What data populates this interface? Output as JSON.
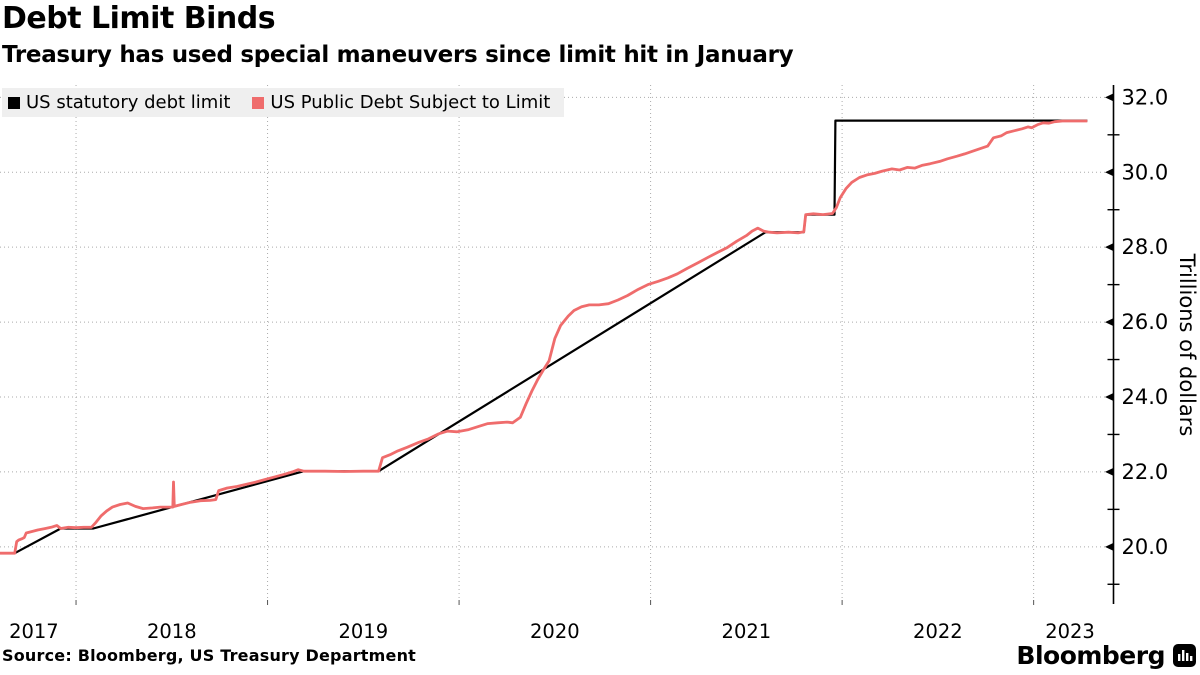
{
  "header": {
    "title": "Debt Limit Binds",
    "subtitle": "Treasury has used special maneuvers since limit hit in January"
  },
  "legend": {
    "position": "top-left",
    "items": [
      {
        "label": "US statutory debt limit",
        "color": "#000000"
      },
      {
        "label": "US Public Debt Subject to Limit",
        "color": "#ef6c6c"
      }
    ]
  },
  "footer": {
    "source": "Source: Bloomberg, US Treasury Department",
    "brand": "Bloomberg",
    "brand_icon": "bloomberg-terminal-icon"
  },
  "colors": {
    "background": "#ffffff",
    "legend_background": "#efefef",
    "gridline": "#ababab",
    "axis": "#000000",
    "limit_line": "#000000",
    "debt_line": "#ef6c6c"
  },
  "chart_data": {
    "type": "line",
    "title": "Debt Limit Binds",
    "xlabel": "",
    "ylabel": "Trillions of dollars",
    "grid": "dotted",
    "legend_position": "top-left",
    "x_domain": [
      2017.603,
      2023.417
    ],
    "y_domain": [
      18.5,
      32.33
    ],
    "x_gridline_years": [
      2018,
      2019,
      2020,
      2021,
      2022,
      2023
    ],
    "x_tick_labels": [
      "2017",
      "2018",
      "2019",
      "2020",
      "2021",
      "2022",
      "2023"
    ],
    "x_tick_positions": [
      2017.78,
      2018.5,
      2019.5,
      2020.5,
      2021.5,
      2022.5,
      2023.19
    ],
    "y_major_ticks": [
      20,
      22,
      24,
      26,
      28,
      30,
      32
    ],
    "y_major_tick_labels": [
      "20.0",
      "22.0",
      "24.0",
      "26.0",
      "28.0",
      "30.0",
      "32.0"
    ],
    "y_minor_ticks": [
      19,
      21,
      23,
      25,
      27,
      29,
      31
    ],
    "series": [
      {
        "name": "US statutory debt limit",
        "color": "#000000",
        "width": 2.2,
        "points": [
          [
            2017.603,
            19.83
          ],
          [
            2017.68,
            19.83
          ],
          [
            2017.92,
            20.49
          ],
          [
            2018.09,
            20.49
          ],
          [
            2019.19,
            22.02
          ],
          [
            2019.58,
            22.02
          ],
          [
            2021.6,
            28.4
          ],
          [
            2021.8,
            28.4
          ],
          [
            2021.81,
            28.87
          ],
          [
            2021.96,
            28.87
          ],
          [
            2021.965,
            31.38
          ],
          [
            2023.28,
            31.38
          ]
        ]
      },
      {
        "name": "US Public Debt Subject to Limit",
        "color": "#ef6c6c",
        "width": 2.8,
        "points": [
          [
            2017.603,
            19.83
          ],
          [
            2017.68,
            19.83
          ],
          [
            2017.69,
            20.14
          ],
          [
            2017.7,
            20.18
          ],
          [
            2017.72,
            20.22
          ],
          [
            2017.73,
            20.25
          ],
          [
            2017.74,
            20.37
          ],
          [
            2017.77,
            20.41
          ],
          [
            2017.8,
            20.45
          ],
          [
            2017.84,
            20.49
          ],
          [
            2017.87,
            20.52
          ],
          [
            2017.9,
            20.57
          ],
          [
            2017.92,
            20.49
          ],
          [
            2017.96,
            20.52
          ],
          [
            2018.0,
            20.51
          ],
          [
            2018.04,
            20.52
          ],
          [
            2018.08,
            20.52
          ],
          [
            2018.1,
            20.63
          ],
          [
            2018.13,
            20.82
          ],
          [
            2018.16,
            20.96
          ],
          [
            2018.19,
            21.06
          ],
          [
            2018.23,
            21.13
          ],
          [
            2018.27,
            21.17
          ],
          [
            2018.31,
            21.08
          ],
          [
            2018.35,
            21.02
          ],
          [
            2018.4,
            21.04
          ],
          [
            2018.44,
            21.06
          ],
          [
            2018.49,
            21.06
          ],
          [
            2018.505,
            21.06
          ],
          [
            2018.509,
            21.73
          ],
          [
            2018.513,
            21.08
          ],
          [
            2018.55,
            21.13
          ],
          [
            2018.6,
            21.19
          ],
          [
            2018.65,
            21.23
          ],
          [
            2018.7,
            21.24
          ],
          [
            2018.73,
            21.26
          ],
          [
            2018.745,
            21.5
          ],
          [
            2018.79,
            21.57
          ],
          [
            2018.84,
            21.61
          ],
          [
            2018.89,
            21.67
          ],
          [
            2018.94,
            21.73
          ],
          [
            2018.99,
            21.8
          ],
          [
            2019.04,
            21.87
          ],
          [
            2019.09,
            21.94
          ],
          [
            2019.13,
            22.0
          ],
          [
            2019.16,
            22.06
          ],
          [
            2019.19,
            22.02
          ],
          [
            2019.3,
            22.02
          ],
          [
            2019.4,
            22.01
          ],
          [
            2019.5,
            22.02
          ],
          [
            2019.58,
            22.02
          ],
          [
            2019.6,
            22.38
          ],
          [
            2019.64,
            22.46
          ],
          [
            2019.68,
            22.56
          ],
          [
            2019.73,
            22.66
          ],
          [
            2019.79,
            22.79
          ],
          [
            2019.84,
            22.88
          ],
          [
            2019.89,
            23.01
          ],
          [
            2019.94,
            23.09
          ],
          [
            2019.99,
            23.07
          ],
          [
            2020.05,
            23.13
          ],
          [
            2020.1,
            23.21
          ],
          [
            2020.15,
            23.29
          ],
          [
            2020.2,
            23.31
          ],
          [
            2020.25,
            23.33
          ],
          [
            2020.28,
            23.31
          ],
          [
            2020.32,
            23.46
          ],
          [
            2020.35,
            23.82
          ],
          [
            2020.38,
            24.16
          ],
          [
            2020.41,
            24.46
          ],
          [
            2020.44,
            24.72
          ],
          [
            2020.47,
            24.97
          ],
          [
            2020.5,
            25.56
          ],
          [
            2020.53,
            25.91
          ],
          [
            2020.57,
            26.16
          ],
          [
            2020.6,
            26.31
          ],
          [
            2020.64,
            26.41
          ],
          [
            2020.68,
            26.46
          ],
          [
            2020.73,
            26.46
          ],
          [
            2020.78,
            26.49
          ],
          [
            2020.83,
            26.59
          ],
          [
            2020.88,
            26.71
          ],
          [
            2020.93,
            26.86
          ],
          [
            2020.99,
            27.01
          ],
          [
            2021.04,
            27.09
          ],
          [
            2021.09,
            27.18
          ],
          [
            2021.14,
            27.29
          ],
          [
            2021.19,
            27.43
          ],
          [
            2021.25,
            27.59
          ],
          [
            2021.3,
            27.73
          ],
          [
            2021.35,
            27.86
          ],
          [
            2021.4,
            27.99
          ],
          [
            2021.45,
            28.16
          ],
          [
            2021.5,
            28.31
          ],
          [
            2021.53,
            28.43
          ],
          [
            2021.56,
            28.51
          ],
          [
            2021.59,
            28.43
          ],
          [
            2021.62,
            28.4
          ],
          [
            2021.66,
            28.38
          ],
          [
            2021.72,
            28.4
          ],
          [
            2021.77,
            28.38
          ],
          [
            2021.8,
            28.41
          ],
          [
            2021.81,
            28.87
          ],
          [
            2021.85,
            28.89
          ],
          [
            2021.9,
            28.87
          ],
          [
            2021.95,
            28.9
          ],
          [
            2021.97,
            29.06
          ],
          [
            2021.99,
            29.32
          ],
          [
            2022.02,
            29.56
          ],
          [
            2022.05,
            29.73
          ],
          [
            2022.09,
            29.86
          ],
          [
            2022.13,
            29.93
          ],
          [
            2022.17,
            29.97
          ],
          [
            2022.21,
            30.03
          ],
          [
            2022.26,
            30.09
          ],
          [
            2022.3,
            30.06
          ],
          [
            2022.34,
            30.13
          ],
          [
            2022.38,
            30.11
          ],
          [
            2022.42,
            30.19
          ],
          [
            2022.46,
            30.23
          ],
          [
            2022.51,
            30.29
          ],
          [
            2022.55,
            30.36
          ],
          [
            2022.6,
            30.43
          ],
          [
            2022.64,
            30.49
          ],
          [
            2022.68,
            30.56
          ],
          [
            2022.72,
            30.63
          ],
          [
            2022.76,
            30.7
          ],
          [
            2022.79,
            30.92
          ],
          [
            2022.83,
            30.97
          ],
          [
            2022.86,
            31.06
          ],
          [
            2022.9,
            31.11
          ],
          [
            2022.94,
            31.16
          ],
          [
            2022.97,
            31.21
          ],
          [
            2022.99,
            31.19
          ],
          [
            2023.02,
            31.27
          ],
          [
            2023.05,
            31.32
          ],
          [
            2023.08,
            31.31
          ],
          [
            2023.11,
            31.35
          ],
          [
            2023.15,
            31.37
          ],
          [
            2023.28,
            31.37
          ]
        ]
      }
    ]
  }
}
